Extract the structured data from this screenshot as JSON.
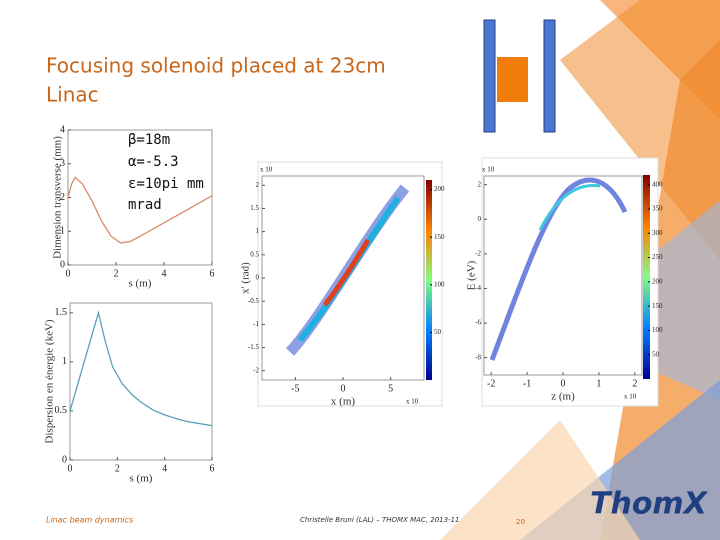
{
  "title": [
    "Focusing solenoid placed at 23cm",
    "Linac"
  ],
  "parameters": [
    "β=18m",
    "α=-5.3",
    "ε=10pi mm",
    "mrad"
  ],
  "figures": [
    {
      "ylabel": "Dimension transverse (mm)",
      "xlabel": "s (m)",
      "xlim": [
        0,
        6
      ],
      "ylim": [
        0,
        4
      ],
      "xticks": [
        0,
        2,
        4,
        6
      ],
      "yticks": [
        0,
        1,
        2,
        3,
        4
      ],
      "color": "#d98b6a",
      "x": [
        0,
        0.15,
        0.3,
        0.6,
        1,
        1.4,
        1.8,
        2.2,
        2.6,
        3,
        3.5,
        4,
        4.5,
        5,
        5.5,
        6
      ],
      "values": [
        2,
        2.4,
        2.6,
        2.4,
        1.9,
        1.3,
        0.85,
        0.65,
        0.7,
        0.85,
        1.05,
        1.25,
        1.45,
        1.65,
        1.85,
        2.05
      ]
    },
    {
      "ylabel": "Dispersion en énergie (keV)",
      "xlabel": "s (m)",
      "xlim": [
        0,
        6
      ],
      "ylim": [
        0,
        1.6
      ],
      "xticks": [
        0,
        2,
        4,
        6
      ],
      "yticks": [
        0,
        0.5,
        1,
        1.5
      ],
      "color": "#5aa0b8",
      "x": [
        0,
        0.3,
        0.6,
        0.9,
        1.2,
        1.5,
        1.8,
        2.2,
        2.6,
        3,
        3.5,
        4,
        4.5,
        5,
        5.5,
        6
      ],
      "values": [
        0.5,
        0.75,
        1.0,
        1.25,
        1.5,
        1.2,
        0.95,
        0.78,
        0.67,
        0.59,
        0.51,
        0.46,
        0.42,
        0.39,
        0.37,
        0.35
      ]
    },
    {
      "ylabel": "x' (rad)",
      "xlabel": "x (m)",
      "xlim": [
        -8.5,
        8.5
      ],
      "ylim": [
        -2.2,
        2.2
      ],
      "xticks": [
        -5,
        0,
        5
      ],
      "yticks": [
        2,
        1.5,
        1,
        0.5,
        0,
        -0.5,
        -1,
        -1.5,
        -2
      ],
      "yscale": "x 10",
      "xscale": "x 10",
      "clim": [
        0,
        210
      ],
      "cticks": [
        200,
        150,
        100,
        50
      ]
    },
    {
      "ylabel": "E (eV)",
      "xlabel": "z (m)",
      "xlim": [
        -2.2,
        2.2
      ],
      "ylim": [
        -9,
        2.5
      ],
      "xticks": [
        -2,
        -1,
        0,
        1,
        2
      ],
      "yticks": [
        2,
        0,
        -2,
        -4,
        -6,
        -8
      ],
      "yscale": "x 10",
      "xscale": "x 10",
      "clim": [
        0,
        420
      ],
      "cticks": [
        400,
        350,
        300,
        250,
        200,
        150,
        100,
        50
      ]
    }
  ],
  "footer": {
    "left": "Linac beam dynamics",
    "center": "Christelle Bruni (LAL) – THOMX MAC, 2013-11",
    "page": "20",
    "logo": "ThomX"
  }
}
